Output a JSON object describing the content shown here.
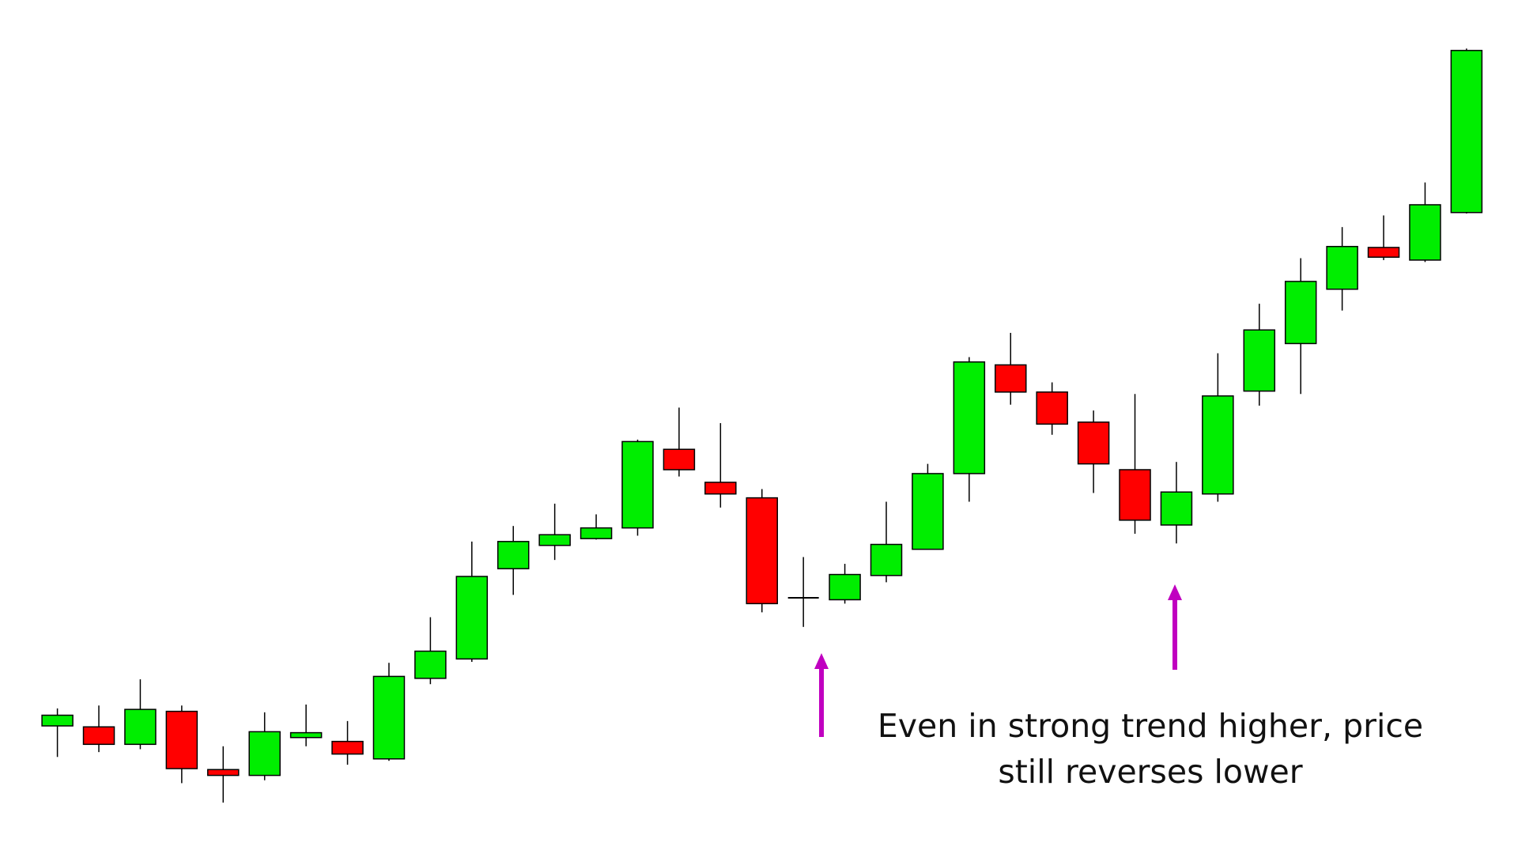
{
  "chart_data": {
    "type": "candlestick",
    "open": [
      132,
      131,
      113,
      147,
      87,
      81,
      120,
      116,
      98,
      181,
      201,
      294,
      318,
      325,
      336,
      417,
      383,
      367,
      264,
      262,
      287,
      314,
      392,
      504,
      476,
      445,
      396,
      339,
      371,
      477,
      526,
      582,
      625,
      612,
      661
    ],
    "high": [
      150,
      153,
      180,
      153,
      111,
      146,
      154,
      137,
      197,
      244,
      322,
      338,
      361,
      350,
      427,
      460,
      444,
      376,
      306,
      299,
      363,
      402,
      512,
      537,
      486,
      457,
      474,
      404,
      516,
      567,
      614,
      646,
      658,
      692,
      830
    ],
    "low": [
      100,
      105,
      108,
      73,
      53,
      76,
      111,
      92,
      96,
      175,
      198,
      267,
      303,
      324,
      328,
      389,
      357,
      249,
      234,
      258,
      280,
      314,
      363,
      463,
      432,
      372,
      330,
      320,
      363,
      462,
      474,
      560,
      612,
      610,
      660
    ],
    "close": [
      143,
      113,
      149,
      88,
      81,
      126,
      125,
      103,
      183,
      209,
      286,
      322,
      329,
      336,
      425,
      396,
      371,
      258,
      264,
      288,
      319,
      392,
      507,
      476,
      443,
      402,
      344,
      373,
      472,
      540,
      590,
      626,
      615,
      669,
      828
    ],
    "ylim": [
      0,
      880
    ],
    "up_color": "#00ee00",
    "down_color": "#ff0000",
    "annotation": [
      "Even in strong trend higher, price",
      "still reverses lower"
    ]
  }
}
